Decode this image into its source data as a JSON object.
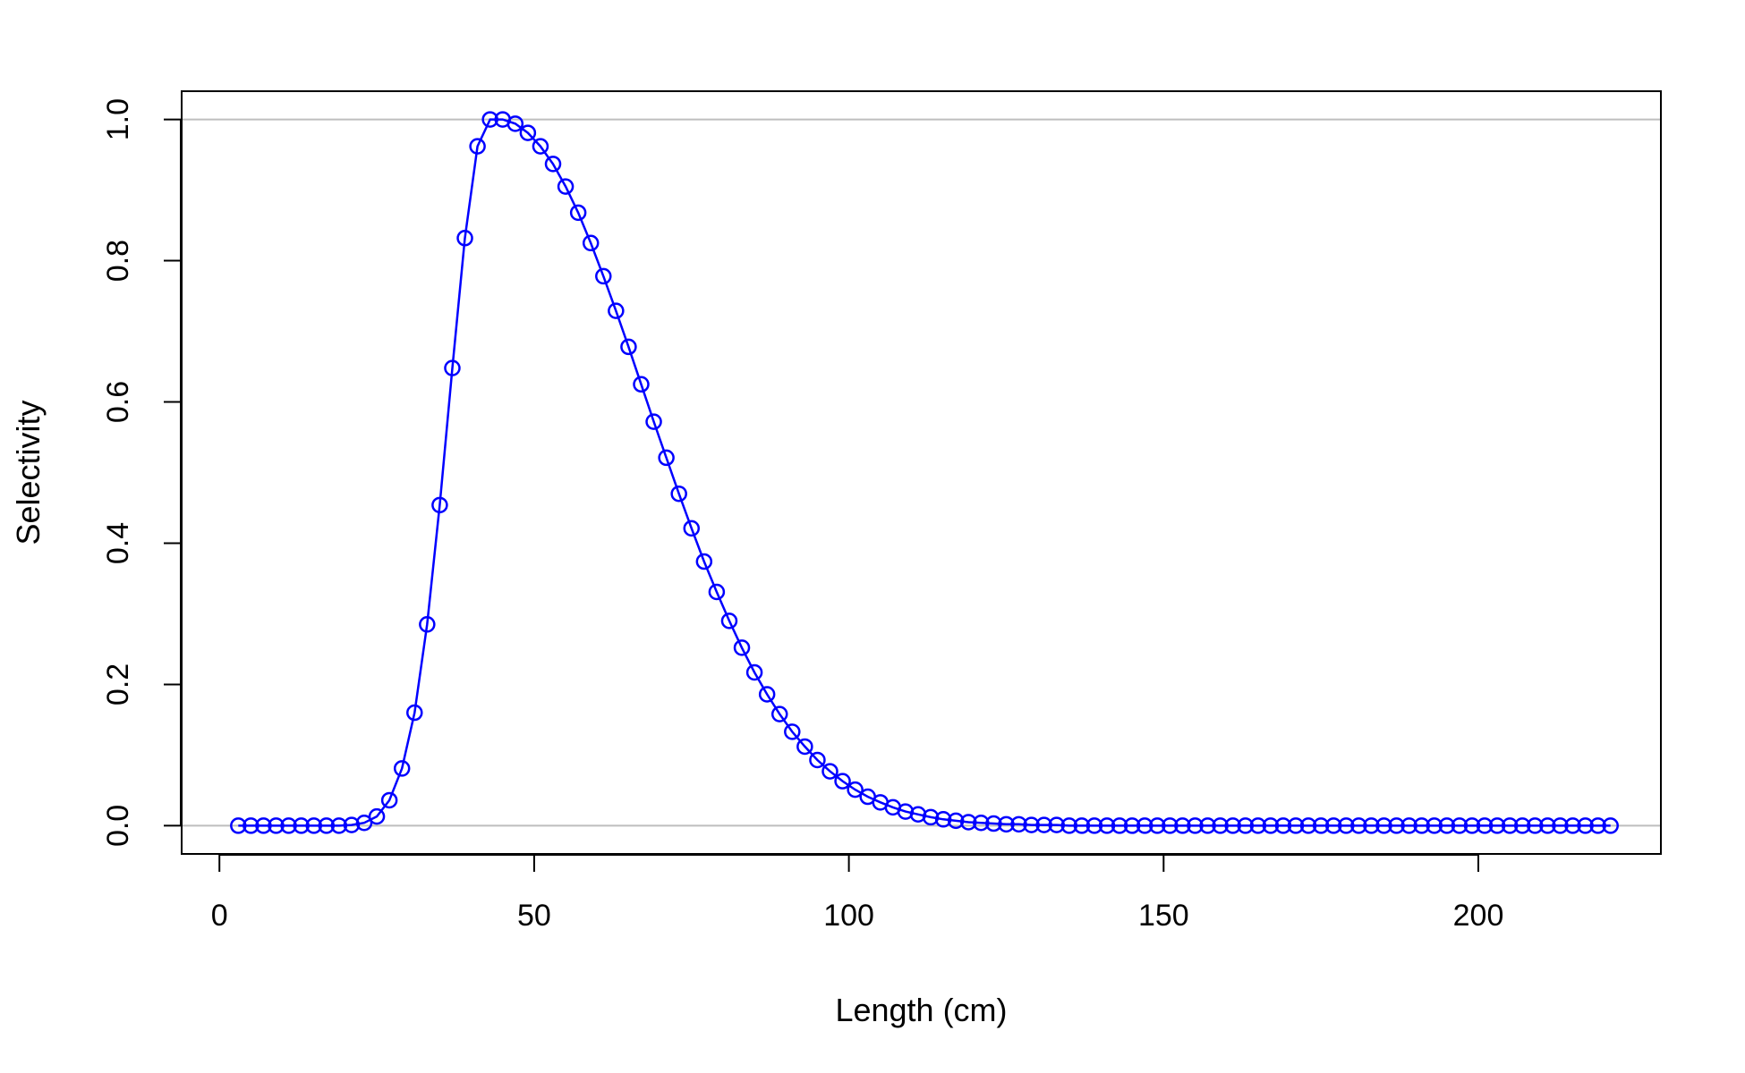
{
  "chart_data": {
    "type": "line",
    "title": "",
    "xlabel": "Length (cm)",
    "ylabel": "Selectivity",
    "xlim": [
      -6,
      229
    ],
    "ylim": [
      -0.04,
      1.04
    ],
    "x_ticks": [
      0,
      50,
      100,
      150,
      200
    ],
    "y_ticks": [
      0.0,
      0.2,
      0.4,
      0.6,
      0.8,
      1.0
    ],
    "x_tick_labels": [
      "0",
      "50",
      "100",
      "150",
      "200"
    ],
    "y_tick_labels": [
      "0.0",
      "0.2",
      "0.4",
      "0.6",
      "0.8",
      "1.0"
    ],
    "reference_lines_y": [
      0,
      1
    ],
    "grid": false,
    "legend": "none",
    "markers": "open-circle",
    "colors": {
      "series": "#0000ff",
      "reference": "#bebebe",
      "axis": "#000000"
    },
    "series": [
      {
        "x": [
          3,
          5,
          7,
          9,
          11,
          13,
          15,
          17,
          19,
          21,
          23,
          25,
          27,
          29,
          31,
          33,
          35,
          37,
          39,
          41,
          43,
          45,
          47,
          49,
          51,
          53,
          55,
          57,
          59,
          61,
          63,
          65,
          67,
          69,
          71,
          73,
          75,
          77,
          79,
          81,
          83,
          85,
          87,
          89,
          91,
          93,
          95,
          97,
          99,
          101,
          103,
          105,
          107,
          109,
          111,
          113,
          115,
          117,
          119,
          121,
          123,
          125,
          127,
          129,
          131,
          133,
          135,
          137,
          139,
          141,
          143,
          145,
          147,
          149,
          151,
          153,
          155,
          157,
          159,
          161,
          163,
          165,
          167,
          169,
          171,
          173,
          175,
          177,
          179,
          181,
          183,
          185,
          187,
          189,
          191,
          193,
          195,
          197,
          199,
          201,
          203,
          205,
          207,
          209,
          211,
          213,
          215,
          217,
          219,
          221
        ],
        "values": [
          0,
          0,
          0,
          0,
          0,
          0,
          0,
          0,
          0,
          0.001,
          0.004,
          0.013,
          0.036,
          0.081,
          0.16,
          0.285,
          0.454,
          0.648,
          0.832,
          0.962,
          1.0,
          1.0,
          0.994,
          0.981,
          0.962,
          0.937,
          0.905,
          0.868,
          0.825,
          0.778,
          0.729,
          0.678,
          0.625,
          0.572,
          0.521,
          0.47,
          0.421,
          0.374,
          0.331,
          0.29,
          0.252,
          0.217,
          0.186,
          0.158,
          0.133,
          0.112,
          0.093,
          0.077,
          0.063,
          0.051,
          0.041,
          0.033,
          0.026,
          0.02,
          0.016,
          0.012,
          0.009,
          0.007,
          0.005,
          0.004,
          0.003,
          0.002,
          0.002,
          0.001,
          0.001,
          0.001,
          0,
          0,
          0,
          0,
          0,
          0,
          0,
          0,
          0,
          0,
          0,
          0,
          0,
          0,
          0,
          0,
          0,
          0,
          0,
          0,
          0,
          0,
          0,
          0,
          0,
          0,
          0,
          0,
          0,
          0,
          0,
          0,
          0,
          0,
          0,
          0,
          0,
          0,
          0,
          0,
          0,
          0,
          0,
          0
        ]
      }
    ]
  }
}
